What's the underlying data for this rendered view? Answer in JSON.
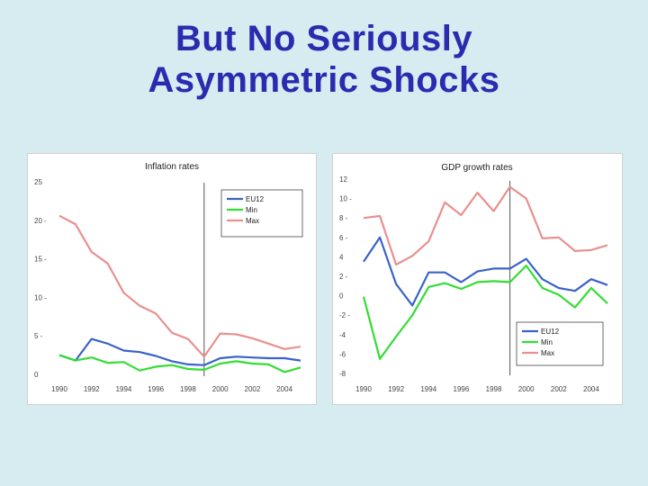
{
  "slide": {
    "title_line1": "But No Seriously",
    "title_line2": "Asymmetric Shocks"
  },
  "colors": {
    "eu12": "#3a63c8",
    "min": "#33dd33",
    "max": "#e8908f",
    "title": "#2b2bb0",
    "background": "#d6ecf0"
  },
  "chart_data": [
    {
      "type": "line",
      "title": "Inflation rates",
      "x": [
        1990,
        1991,
        1992,
        1993,
        1994,
        1995,
        1996,
        1997,
        1998,
        1999,
        2000,
        2001,
        2002,
        2003,
        2004,
        2005
      ],
      "xticks": [
        1990,
        1992,
        1994,
        1996,
        1998,
        2000,
        2002,
        2004
      ],
      "xtick_labels": [
        "1990",
        "1992",
        "1994",
        "1996",
        "1998",
        "2000",
        "2002",
        "2004"
      ],
      "ylim": [
        0,
        25
      ],
      "yticks": [
        0,
        5,
        10,
        15,
        20,
        25
      ],
      "ytick_labels": [
        "0",
        "5 -",
        "10 -",
        "15 -",
        "20 -",
        "25"
      ],
      "vline_x": 1999,
      "legend_position": "top-right",
      "series": [
        {
          "name": "EU12",
          "color_key": "eu12",
          "values": [
            2.5,
            1.8,
            4.6,
            4.0,
            3.1,
            2.9,
            2.4,
            1.7,
            1.3,
            1.2,
            2.1,
            2.3,
            2.2,
            2.1,
            2.1,
            1.8
          ]
        },
        {
          "name": "Min",
          "color_key": "min",
          "values": [
            2.5,
            1.8,
            2.2,
            1.5,
            1.6,
            0.5,
            1.0,
            1.2,
            0.7,
            0.6,
            1.4,
            1.7,
            1.4,
            1.3,
            0.3,
            0.9
          ]
        },
        {
          "name": "Max",
          "color_key": "max",
          "values": [
            20.6,
            19.5,
            15.9,
            14.4,
            10.6,
            8.9,
            7.9,
            5.4,
            4.6,
            2.3,
            5.3,
            5.2,
            4.7,
            4.0,
            3.3,
            3.6
          ]
        }
      ]
    },
    {
      "type": "line",
      "title": "GDP growth rates",
      "x": [
        1990,
        1991,
        1992,
        1993,
        1994,
        1995,
        1996,
        1997,
        1998,
        1999,
        2000,
        2001,
        2002,
        2003,
        2004,
        2005
      ],
      "xticks": [
        1990,
        1992,
        1994,
        1996,
        1998,
        2000,
        2002,
        2004
      ],
      "xtick_labels": [
        "1990",
        "1992",
        "1994",
        "1996",
        "1998",
        "2000",
        "2002",
        "2004"
      ],
      "ylim": [
        -8,
        12
      ],
      "yticks": [
        -8,
        -6,
        -4,
        -2,
        0,
        2,
        4,
        6,
        8,
        10,
        12
      ],
      "ytick_labels": [
        "-8",
        "-6",
        "-4",
        "-2 -",
        "0",
        "2 -",
        "4",
        "6 -",
        "8 -",
        "10 -",
        "12"
      ],
      "vline_x": 1999,
      "legend_position": "bottom-right",
      "series": [
        {
          "name": "EU12",
          "color_key": "eu12",
          "values": [
            3.5,
            6.0,
            1.2,
            -1.0,
            2.4,
            2.4,
            1.4,
            2.5,
            2.8,
            2.8,
            3.8,
            1.7,
            0.8,
            0.5,
            1.7,
            1.1
          ]
        },
        {
          "name": "Min",
          "color_key": "min",
          "values": [
            -0.1,
            -6.5,
            -4.2,
            -2.0,
            0.9,
            1.3,
            0.7,
            1.4,
            1.5,
            1.4,
            3.1,
            0.8,
            0.1,
            -1.2,
            0.8,
            -0.8
          ]
        },
        {
          "name": "Max",
          "color_key": "max",
          "values": [
            8.0,
            8.2,
            3.2,
            4.1,
            5.6,
            9.6,
            8.3,
            10.6,
            8.7,
            11.2,
            10.0,
            5.9,
            6.0,
            4.6,
            4.7,
            5.2
          ]
        }
      ]
    }
  ]
}
